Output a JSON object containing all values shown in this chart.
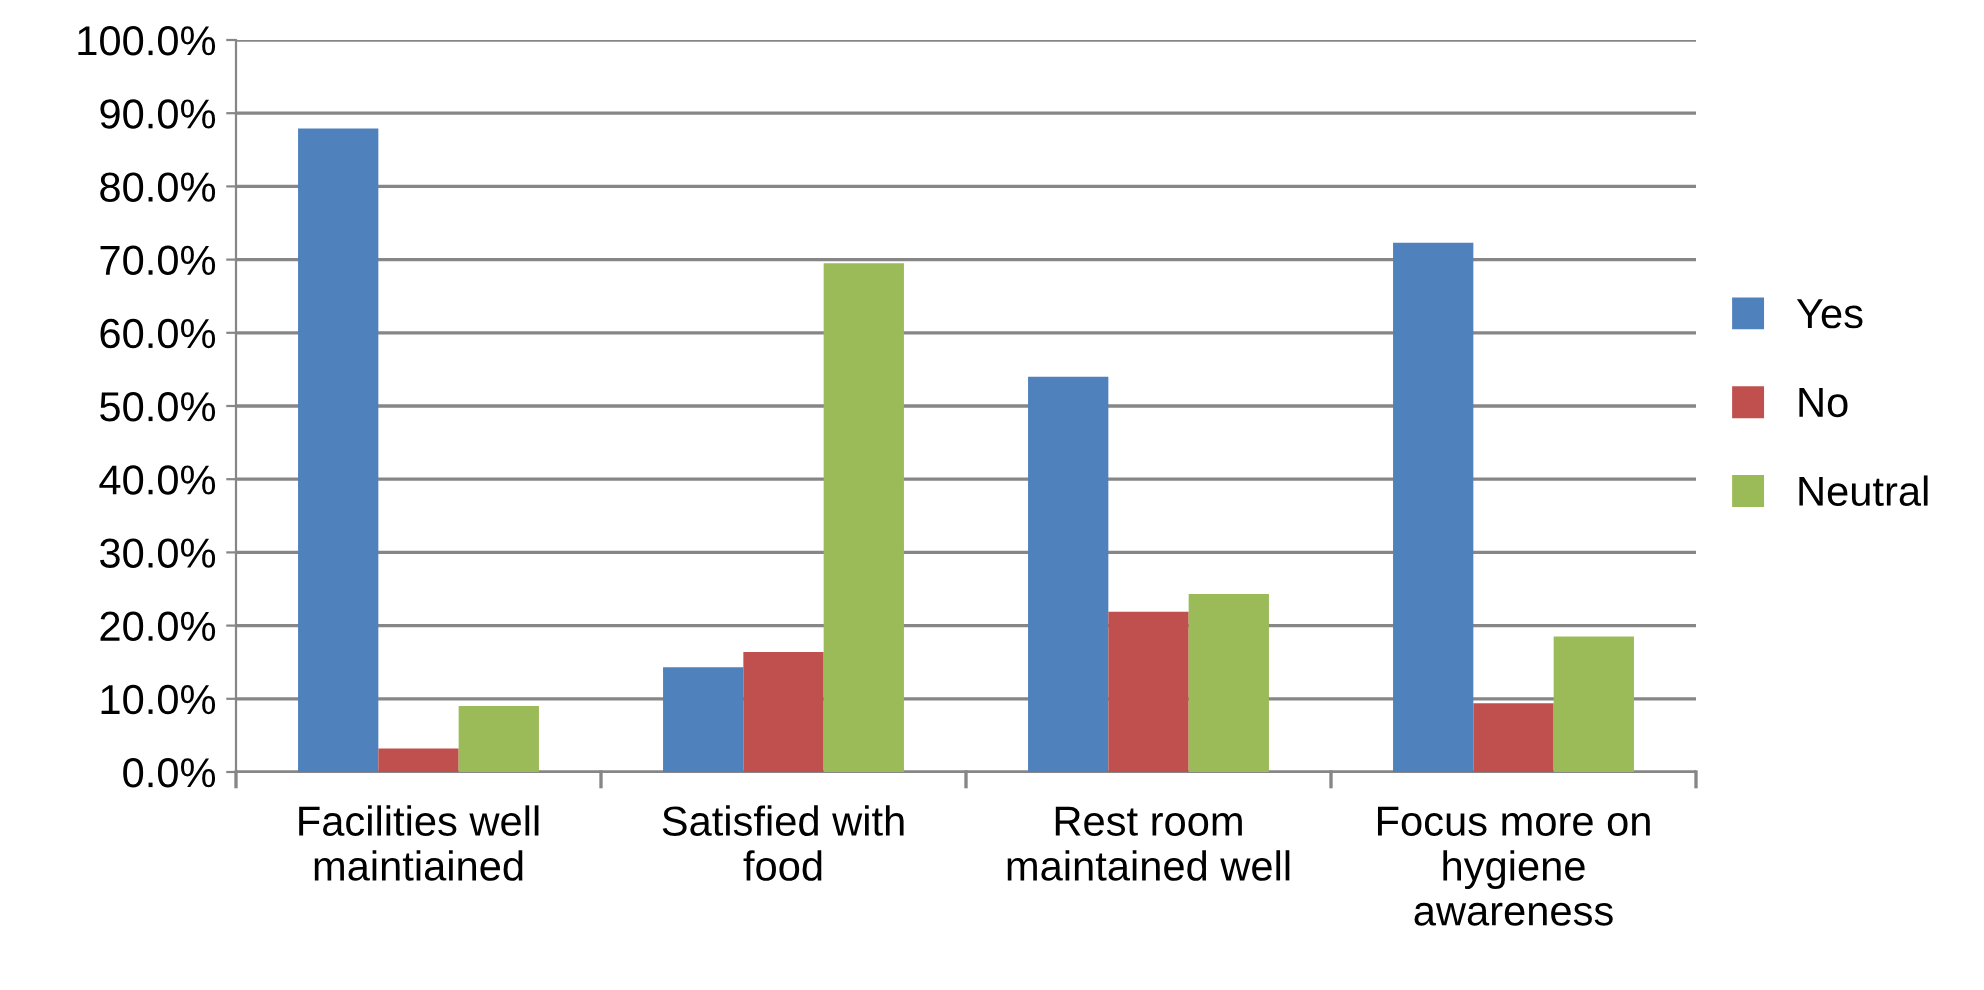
{
  "chart_data": {
    "type": "bar",
    "categories": [
      "Facilities well\nmaintiained",
      "Satisfied with\nfood",
      "Rest room\nmaintained well",
      "Focus more on\nhygiene\nawareness"
    ],
    "series": [
      {
        "name": "Yes",
        "color": "#4f81bd",
        "values": [
          87.9,
          14.3,
          54.0,
          72.3
        ]
      },
      {
        "name": "No",
        "color": "#c0504d",
        "values": [
          3.2,
          16.4,
          21.9,
          9.4
        ]
      },
      {
        "name": "Neutral",
        "color": "#9bbb59",
        "values": [
          9.0,
          69.5,
          24.3,
          18.5
        ]
      }
    ],
    "ylim": [
      0,
      100
    ],
    "yticks": [
      {
        "value": 0,
        "label": "0.0%"
      },
      {
        "value": 10,
        "label": "10.0%"
      },
      {
        "value": 20,
        "label": "20.0%"
      },
      {
        "value": 30,
        "label": "30.0%"
      },
      {
        "value": 40,
        "label": "40.0%"
      },
      {
        "value": 50,
        "label": "50.0%"
      },
      {
        "value": 60,
        "label": "60.0%"
      },
      {
        "value": 70,
        "label": "70.0%"
      },
      {
        "value": 80,
        "label": "80.0%"
      },
      {
        "value": 90,
        "label": "90.0%"
      },
      {
        "value": 100,
        "label": "100.0%"
      }
    ],
    "grid": "y",
    "legend": "right"
  }
}
